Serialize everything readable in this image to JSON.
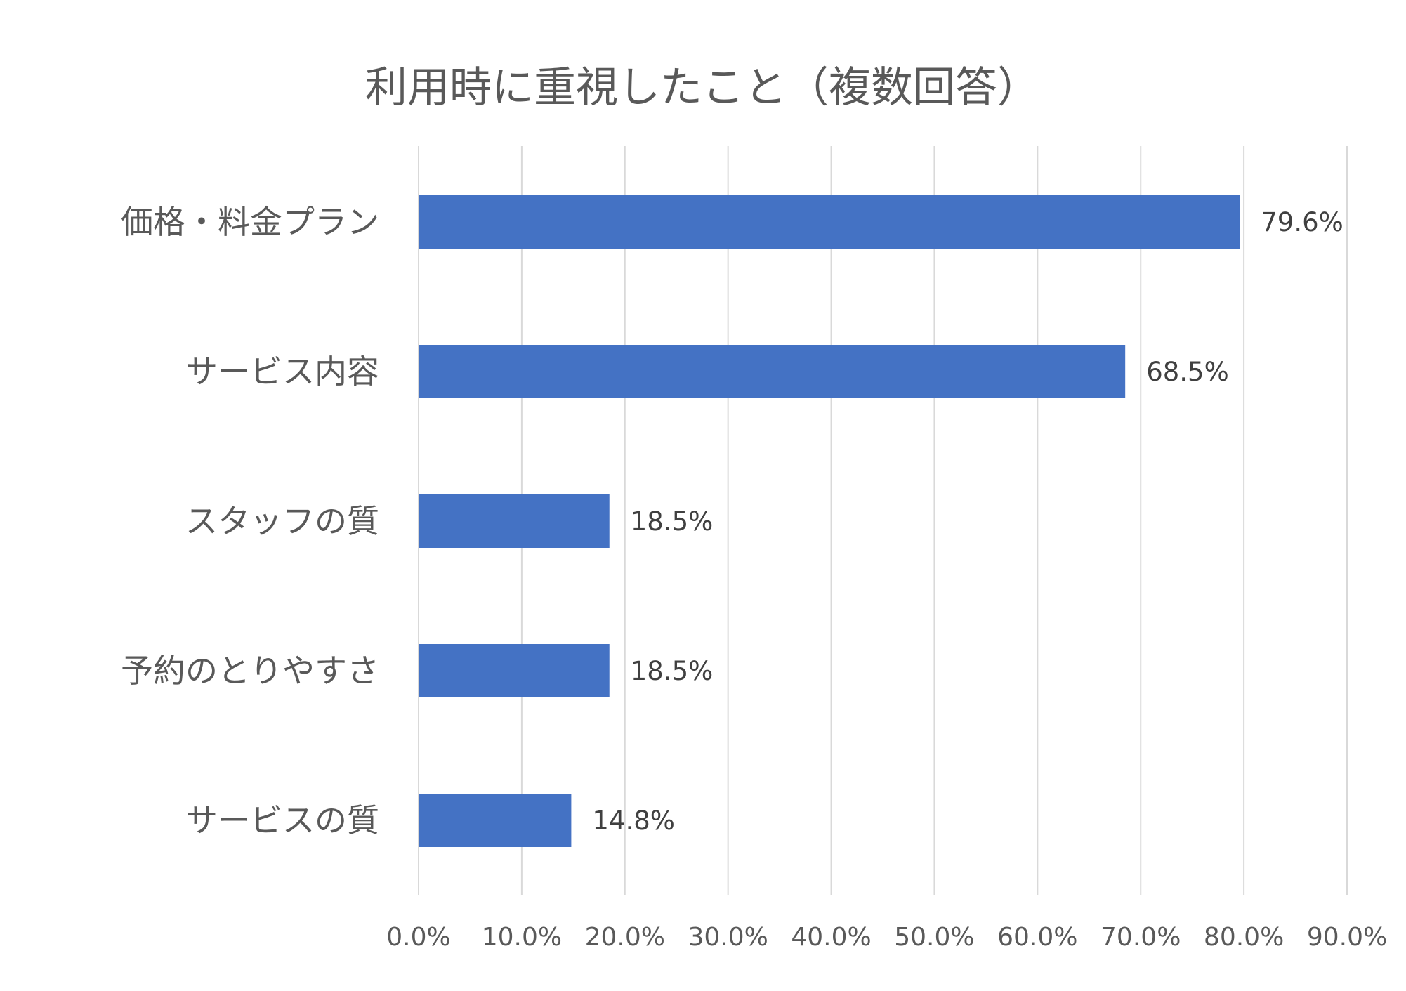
{
  "chart_data": {
    "type": "bar",
    "orientation": "horizontal",
    "title": "利用時に重視したこと（複数回答）",
    "categories": [
      "価格・料金プラン",
      "サービス内容",
      "スタッフの質",
      "予約のとりやすさ",
      "サービスの質"
    ],
    "values": [
      79.6,
      68.5,
      18.5,
      18.5,
      14.8
    ],
    "data_labels": [
      "79.6%",
      "68.5%",
      "18.5%",
      "18.5%",
      "14.8%"
    ],
    "xlim": [
      0,
      90
    ],
    "ticks": [
      0,
      10,
      20,
      30,
      40,
      50,
      60,
      70,
      80,
      90
    ],
    "tick_labels": [
      "0.0%",
      "10.0%",
      "20.0%",
      "30.0%",
      "40.0%",
      "50.0%",
      "60.0%",
      "70.0%",
      "80.0%",
      "90.0%"
    ],
    "grid": true,
    "legend": "none",
    "bar_color": "#4472C4",
    "grid_color": "#D9D9D9"
  }
}
